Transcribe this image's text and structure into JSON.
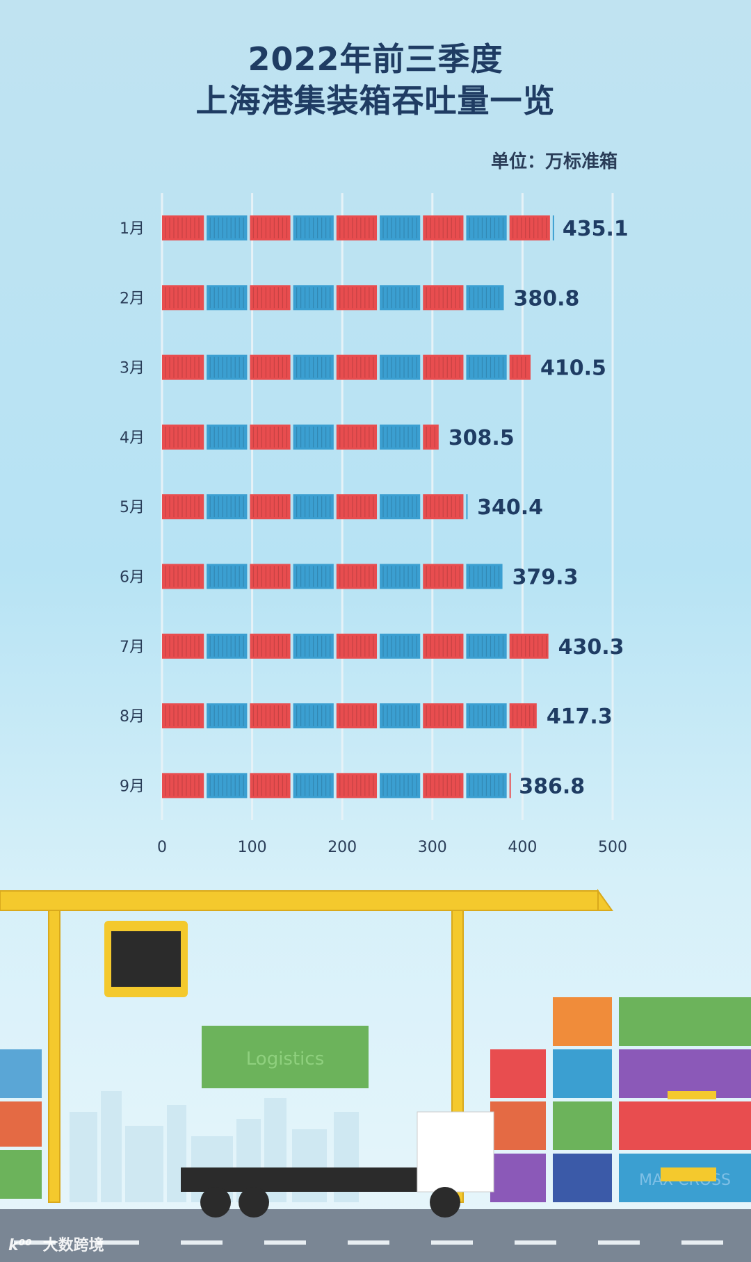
{
  "title": {
    "line1": "2022年前三季度",
    "line2": "上海港集装箱吞吐量一览"
  },
  "unit": "单位：万标准箱",
  "watermark": {
    "logo": "大数跨境",
    "mark": "k⁰⁰"
  },
  "colors": {
    "red_container": "#e84d4f",
    "blue_container": "#3b9fd1",
    "title": "#1f3c63",
    "value_text": "#1f3c63",
    "crane": "#f4c92d"
  },
  "scene_text": {
    "crane_container": "Logistics",
    "stack_container": "MAX CROSS"
  },
  "chart_data": {
    "type": "bar",
    "orientation": "horizontal",
    "categories": [
      "1月",
      "2月",
      "3月",
      "4月",
      "5月",
      "6月",
      "7月",
      "8月",
      "9月"
    ],
    "values": [
      435.1,
      380.8,
      410.5,
      308.5,
      340.4,
      379.3,
      430.3,
      417.3,
      386.8
    ],
    "value_labels": [
      "435.1",
      "380.8",
      "410.5",
      "308.5",
      "340.4",
      "379.3",
      "430.3",
      "417.3",
      "386.8"
    ],
    "xlim": [
      0,
      500
    ],
    "x_ticks": [
      0,
      100,
      200,
      300,
      400,
      500
    ],
    "x_tick_labels": [
      "0",
      "100",
      "200",
      "300",
      "400",
      "500"
    ],
    "grid": true,
    "bar_style": "alternating red and blue shipping containers"
  }
}
